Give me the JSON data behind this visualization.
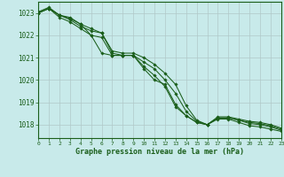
{
  "title": "Graphe pression niveau de la mer (hPa)",
  "bg_color": "#c8eaea",
  "grid_color": "#b0c8c8",
  "line_color": "#1a5e1a",
  "x_labels": [
    "0",
    "1",
    "2",
    "3",
    "4",
    "5",
    "6",
    "7",
    "8",
    "9",
    "10",
    "11",
    "12",
    "13",
    "14",
    "15",
    "16",
    "17",
    "18",
    "19",
    "20",
    "21",
    "22",
    "23"
  ],
  "ylim": [
    1017.4,
    1023.5
  ],
  "xlim": [
    0,
    23
  ],
  "yticks": [
    1018,
    1019,
    1020,
    1021,
    1022,
    1023
  ],
  "series": [
    [
      1023.0,
      1023.2,
      1022.9,
      1022.8,
      1022.5,
      1022.0,
      1021.9,
      1021.1,
      1021.1,
      1021.1,
      1020.5,
      1020.0,
      1019.8,
      1018.9,
      1018.4,
      1018.1,
      1018.0,
      1018.25,
      1018.25,
      1018.1,
      1017.95,
      1017.9,
      1017.8,
      1017.7
    ],
    [
      1023.0,
      1023.2,
      1022.8,
      1022.6,
      1022.3,
      1022.0,
      1021.2,
      1021.1,
      1021.1,
      1021.1,
      1020.6,
      1020.2,
      1019.7,
      1018.8,
      1018.4,
      1018.1,
      1018.0,
      1018.3,
      1018.3,
      1018.2,
      1018.05,
      1018.0,
      1017.9,
      1017.75
    ],
    [
      1023.0,
      1023.2,
      1022.9,
      1022.7,
      1022.4,
      1022.2,
      1022.1,
      1021.2,
      1021.1,
      1021.1,
      1020.8,
      1020.5,
      1020.0,
      1019.4,
      1018.6,
      1018.15,
      1018.0,
      1018.3,
      1018.3,
      1018.2,
      1018.1,
      1018.05,
      1017.95,
      1017.8
    ],
    [
      1023.05,
      1023.25,
      1022.9,
      1022.75,
      1022.5,
      1022.3,
      1022.1,
      1021.3,
      1021.2,
      1021.2,
      1021.0,
      1020.7,
      1020.3,
      1019.8,
      1018.85,
      1018.2,
      1018.0,
      1018.35,
      1018.35,
      1018.25,
      1018.15,
      1018.1,
      1018.0,
      1017.85
    ]
  ]
}
